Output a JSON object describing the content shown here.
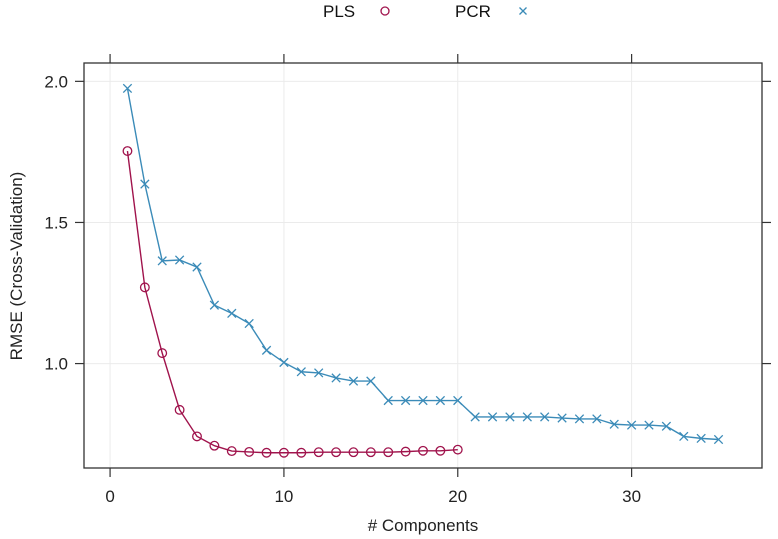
{
  "chart_data": {
    "type": "line",
    "title": "",
    "xlabel": "# Components",
    "ylabel": "RMSE (Cross-Validation)",
    "xlim": [
      -1.5,
      37.5
    ],
    "ylim": [
      0.63,
      2.065
    ],
    "xticks": [
      0,
      10,
      20,
      30
    ],
    "xtick_labels": [
      "0",
      "10",
      "20",
      "30"
    ],
    "yticks": [
      1.0,
      1.5,
      2.0
    ],
    "ytick_labels": [
      "1.0",
      "1.5",
      "2.0"
    ],
    "grid": true,
    "legend_position": "top-center",
    "series": [
      {
        "name": "PLS",
        "marker": "circle",
        "color": "#A0134C",
        "x": [
          1,
          2,
          3,
          4,
          5,
          6,
          7,
          8,
          9,
          10,
          11,
          12,
          13,
          14,
          15,
          16,
          17,
          18,
          19,
          20
        ],
        "values": [
          1.753,
          1.27,
          1.037,
          0.836,
          0.742,
          0.709,
          0.69,
          0.687,
          0.684,
          0.684,
          0.684,
          0.686,
          0.686,
          0.686,
          0.686,
          0.686,
          0.688,
          0.691,
          0.691,
          0.695
        ]
      },
      {
        "name": "PCR",
        "marker": "x",
        "color": "#3B8BB8",
        "x": [
          1,
          2,
          3,
          4,
          5,
          6,
          7,
          8,
          9,
          10,
          11,
          12,
          13,
          14,
          15,
          16,
          17,
          18,
          19,
          20,
          21,
          22,
          23,
          24,
          25,
          26,
          27,
          28,
          29,
          30,
          31,
          32,
          33,
          34,
          35
        ],
        "values": [
          1.975,
          1.636,
          1.364,
          1.367,
          1.342,
          1.207,
          1.178,
          1.142,
          1.047,
          1.004,
          0.971,
          0.967,
          0.949,
          0.938,
          0.938,
          0.869,
          0.869,
          0.869,
          0.869,
          0.869,
          0.811,
          0.811,
          0.811,
          0.811,
          0.811,
          0.807,
          0.804,
          0.804,
          0.785,
          0.782,
          0.782,
          0.778,
          0.742,
          0.735,
          0.731
        ]
      }
    ]
  },
  "legend": {
    "items": [
      {
        "label": "PLS",
        "symbol": "○"
      },
      {
        "label": "PCR",
        "symbol": "×"
      }
    ]
  }
}
